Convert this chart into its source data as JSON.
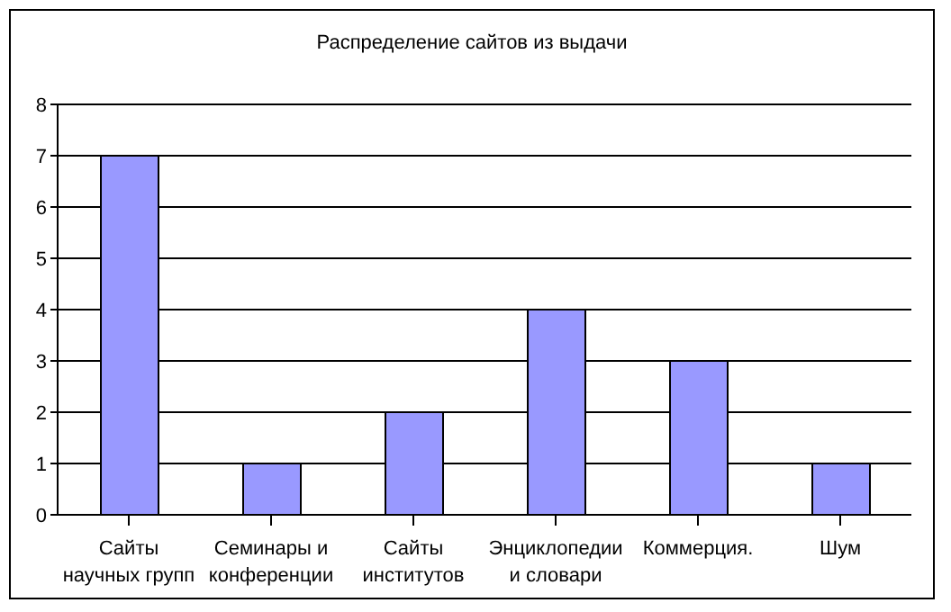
{
  "chart_data": {
    "type": "bar",
    "title": "Распределение сайтов из выдачи",
    "categories": [
      "Сайты научных групп",
      "Семинары и конференции",
      "Сайты институтов",
      "Энциклопедии и словари",
      "Коммерция.",
      "Шум"
    ],
    "values": [
      7,
      1,
      2,
      4,
      3,
      1
    ],
    "color": "#9999ff",
    "ylim": [
      0,
      8
    ],
    "yticks": [
      0,
      1,
      2,
      3,
      4,
      5,
      6,
      7,
      8
    ],
    "grid": "y"
  }
}
